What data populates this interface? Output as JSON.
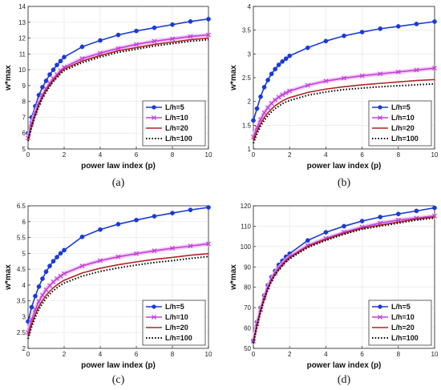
{
  "chart_data": [
    {
      "type": "line",
      "panel_label": "(a)",
      "xlabel": "power law index (p)",
      "ylabel": "w*max",
      "xlim": [
        0,
        10
      ],
      "ylim": [
        5,
        14
      ],
      "xticks": [
        0,
        2,
        4,
        6,
        8,
        10
      ],
      "yticks": [
        5,
        6,
        7,
        8,
        9,
        10,
        11,
        12,
        13,
        14
      ],
      "legend_position": "bottom-right",
      "series": [
        {
          "name": "L/h=5",
          "color": "#1a3bd6",
          "marker": "circle",
          "x": [
            0,
            0.2,
            0.4,
            0.6,
            0.8,
            1.0,
            1.2,
            1.4,
            1.6,
            1.8,
            2.0,
            3,
            4,
            5,
            6,
            7,
            8,
            9,
            10
          ],
          "y": [
            6.0,
            7.0,
            7.7,
            8.4,
            8.9,
            9.3,
            9.7,
            10.0,
            10.3,
            10.55,
            10.8,
            11.45,
            11.85,
            12.2,
            12.45,
            12.65,
            12.85,
            13.05,
            13.2
          ]
        },
        {
          "name": "L/h=10",
          "color": "#c040d8",
          "marker": "x",
          "x": [
            0,
            0.2,
            0.4,
            0.6,
            0.8,
            1.0,
            1.2,
            1.4,
            1.6,
            1.8,
            2.0,
            3,
            4,
            5,
            6,
            7,
            8,
            9,
            10
          ],
          "y": [
            5.7,
            6.6,
            7.3,
            7.9,
            8.4,
            8.8,
            9.15,
            9.45,
            9.7,
            9.95,
            10.15,
            10.7,
            11.05,
            11.35,
            11.6,
            11.8,
            11.95,
            12.1,
            12.2
          ]
        },
        {
          "name": "L/h=20",
          "color": "#b22222",
          "marker": "none",
          "x": [
            0,
            0.2,
            0.4,
            0.6,
            0.8,
            1.0,
            1.2,
            1.4,
            1.6,
            1.8,
            2.0,
            3,
            4,
            5,
            6,
            7,
            8,
            9,
            10
          ],
          "y": [
            5.6,
            6.5,
            7.2,
            7.8,
            8.3,
            8.7,
            9.05,
            9.35,
            9.6,
            9.85,
            10.05,
            10.55,
            10.9,
            11.2,
            11.4,
            11.6,
            11.75,
            11.9,
            12.0
          ]
        },
        {
          "name": "L/h=100",
          "color": "#000000",
          "marker": "dotted",
          "x": [
            0,
            0.2,
            0.4,
            0.6,
            0.8,
            1.0,
            1.2,
            1.4,
            1.6,
            1.8,
            2.0,
            3,
            4,
            5,
            6,
            7,
            8,
            9,
            10
          ],
          "y": [
            5.5,
            6.4,
            7.1,
            7.7,
            8.2,
            8.6,
            8.95,
            9.25,
            9.5,
            9.75,
            9.95,
            10.45,
            10.8,
            11.1,
            11.3,
            11.5,
            11.65,
            11.8,
            11.9
          ]
        }
      ]
    },
    {
      "type": "line",
      "panel_label": "(b)",
      "xlabel": "power law index (p)",
      "ylabel": "w*max",
      "xlim": [
        0,
        10
      ],
      "ylim": [
        1,
        4
      ],
      "xticks": [
        0,
        2,
        4,
        6,
        8,
        10
      ],
      "yticks": [
        1,
        1.5,
        2,
        2.5,
        3,
        3.5,
        4
      ],
      "legend_position": "bottom-right",
      "series": [
        {
          "name": "L/h=5",
          "color": "#1a3bd6",
          "marker": "circle",
          "x": [
            0,
            0.2,
            0.4,
            0.6,
            0.8,
            1.0,
            1.2,
            1.4,
            1.6,
            1.8,
            2.0,
            3,
            4,
            5,
            6,
            7,
            8,
            9,
            10
          ],
          "y": [
            1.6,
            1.85,
            2.1,
            2.3,
            2.45,
            2.58,
            2.68,
            2.77,
            2.84,
            2.9,
            2.96,
            3.13,
            3.27,
            3.38,
            3.46,
            3.53,
            3.58,
            3.63,
            3.68
          ]
        },
        {
          "name": "L/h=10",
          "color": "#c040d8",
          "marker": "x",
          "x": [
            0,
            0.2,
            0.4,
            0.6,
            0.8,
            1.0,
            1.2,
            1.4,
            1.6,
            1.8,
            2.0,
            3,
            4,
            5,
            6,
            7,
            8,
            9,
            10
          ],
          "y": [
            1.25,
            1.45,
            1.62,
            1.76,
            1.87,
            1.96,
            2.03,
            2.09,
            2.14,
            2.18,
            2.22,
            2.34,
            2.43,
            2.49,
            2.54,
            2.58,
            2.62,
            2.66,
            2.7
          ]
        },
        {
          "name": "L/h=20",
          "color": "#b22222",
          "marker": "none",
          "x": [
            0,
            0.2,
            0.4,
            0.6,
            0.8,
            1.0,
            1.2,
            1.4,
            1.6,
            1.8,
            2.0,
            3,
            4,
            5,
            6,
            7,
            8,
            9,
            10
          ],
          "y": [
            1.18,
            1.37,
            1.53,
            1.66,
            1.76,
            1.84,
            1.91,
            1.96,
            2.01,
            2.05,
            2.08,
            2.19,
            2.26,
            2.31,
            2.35,
            2.38,
            2.41,
            2.44,
            2.46
          ]
        },
        {
          "name": "L/h=100",
          "color": "#000000",
          "marker": "dotted",
          "x": [
            0,
            0.2,
            0.4,
            0.6,
            0.8,
            1.0,
            1.2,
            1.4,
            1.6,
            1.8,
            2.0,
            3,
            4,
            5,
            6,
            7,
            8,
            9,
            10
          ],
          "y": [
            1.12,
            1.32,
            1.48,
            1.6,
            1.7,
            1.78,
            1.85,
            1.9,
            1.95,
            1.99,
            2.02,
            2.13,
            2.2,
            2.25,
            2.28,
            2.31,
            2.33,
            2.35,
            2.37
          ]
        }
      ]
    },
    {
      "type": "line",
      "panel_label": "(c)",
      "xlabel": "power law index (p)",
      "ylabel": "w*max",
      "xlim": [
        0,
        10
      ],
      "ylim": [
        2,
        6.5
      ],
      "xticks": [
        0,
        2,
        4,
        6,
        8,
        10
      ],
      "yticks": [
        2,
        2.5,
        3,
        3.5,
        4,
        4.5,
        5,
        5.5,
        6,
        6.5
      ],
      "legend_position": "bottom-right",
      "series": [
        {
          "name": "L/h=5",
          "color": "#1a3bd6",
          "marker": "circle",
          "x": [
            0,
            0.2,
            0.4,
            0.6,
            0.8,
            1.0,
            1.2,
            1.4,
            1.6,
            1.8,
            2.0,
            3,
            4,
            5,
            6,
            7,
            8,
            9,
            10
          ],
          "y": [
            2.85,
            3.3,
            3.65,
            3.95,
            4.2,
            4.42,
            4.6,
            4.75,
            4.88,
            5.0,
            5.1,
            5.52,
            5.75,
            5.92,
            6.05,
            6.17,
            6.27,
            6.37,
            6.45
          ]
        },
        {
          "name": "L/h=10",
          "color": "#c040d8",
          "marker": "x",
          "x": [
            0,
            0.2,
            0.4,
            0.6,
            0.8,
            1.0,
            1.2,
            1.4,
            1.6,
            1.8,
            2.0,
            3,
            4,
            5,
            6,
            7,
            8,
            9,
            10
          ],
          "y": [
            2.5,
            2.9,
            3.22,
            3.48,
            3.68,
            3.85,
            3.98,
            4.1,
            4.2,
            4.28,
            4.36,
            4.6,
            4.77,
            4.89,
            4.99,
            5.08,
            5.16,
            5.23,
            5.3
          ]
        },
        {
          "name": "L/h=20",
          "color": "#b22222",
          "marker": "none",
          "x": [
            0,
            0.2,
            0.4,
            0.6,
            0.8,
            1.0,
            1.2,
            1.4,
            1.6,
            1.8,
            2.0,
            3,
            4,
            5,
            6,
            7,
            8,
            9,
            10
          ],
          "y": [
            2.38,
            2.76,
            3.07,
            3.32,
            3.51,
            3.67,
            3.8,
            3.91,
            4.0,
            4.08,
            4.15,
            4.38,
            4.53,
            4.64,
            4.73,
            4.81,
            4.87,
            4.94,
            4.99
          ]
        },
        {
          "name": "L/h=100",
          "color": "#000000",
          "marker": "dotted",
          "x": [
            0,
            0.2,
            0.4,
            0.6,
            0.8,
            1.0,
            1.2,
            1.4,
            1.6,
            1.8,
            2.0,
            3,
            4,
            5,
            6,
            7,
            8,
            9,
            10
          ],
          "y": [
            2.3,
            2.68,
            2.98,
            3.23,
            3.42,
            3.58,
            3.71,
            3.82,
            3.91,
            3.99,
            4.06,
            4.28,
            4.43,
            4.54,
            4.63,
            4.71,
            4.77,
            4.84,
            4.9
          ]
        }
      ]
    },
    {
      "type": "line",
      "panel_label": "(d)",
      "xlabel": "power law index (p)",
      "ylabel": "w*max",
      "xlim": [
        0,
        10
      ],
      "ylim": [
        50,
        120
      ],
      "xticks": [
        0,
        2,
        4,
        6,
        8,
        10
      ],
      "yticks": [
        50,
        60,
        70,
        80,
        90,
        100,
        110,
        120
      ],
      "legend_position": "bottom-right",
      "series": [
        {
          "name": "L/h=5",
          "color": "#1a3bd6",
          "marker": "circle",
          "x": [
            0,
            0.2,
            0.4,
            0.6,
            0.8,
            1.0,
            1.2,
            1.4,
            1.6,
            1.8,
            2.0,
            3,
            4,
            5,
            6,
            7,
            8,
            9,
            10
          ],
          "y": [
            54,
            63,
            70,
            76,
            81,
            85,
            88,
            91,
            93,
            95,
            96.5,
            103,
            107,
            110,
            112.5,
            114.5,
            116,
            117.5,
            119
          ]
        },
        {
          "name": "L/h=10",
          "color": "#c040d8",
          "marker": "x",
          "x": [
            0,
            0.2,
            0.4,
            0.6,
            0.8,
            1.0,
            1.2,
            1.4,
            1.6,
            1.8,
            2.0,
            3,
            4,
            5,
            6,
            7,
            8,
            9,
            10
          ],
          "y": [
            53.5,
            62,
            69,
            75,
            80,
            84,
            87,
            89.5,
            91.5,
            93.5,
            95,
            100.5,
            104,
            107,
            109.5,
            111.5,
            113,
            114,
            115
          ]
        },
        {
          "name": "L/h=20",
          "color": "#b22222",
          "marker": "none",
          "x": [
            0,
            0.2,
            0.4,
            0.6,
            0.8,
            1.0,
            1.2,
            1.4,
            1.6,
            1.8,
            2.0,
            3,
            4,
            5,
            6,
            7,
            8,
            9,
            10
          ],
          "y": [
            53,
            61.5,
            68.5,
            74.5,
            79.5,
            83.5,
            86.5,
            89,
            91,
            93,
            94.5,
            100,
            103.5,
            106.5,
            109,
            110.5,
            112,
            113.5,
            114.5
          ]
        },
        {
          "name": "L/h=100",
          "color": "#000000",
          "marker": "dotted",
          "x": [
            0,
            0.2,
            0.4,
            0.6,
            0.8,
            1.0,
            1.2,
            1.4,
            1.6,
            1.8,
            2.0,
            3,
            4,
            5,
            6,
            7,
            8,
            9,
            10
          ],
          "y": [
            52.5,
            61,
            68,
            74,
            79,
            83,
            86,
            88.5,
            90.5,
            92.5,
            94,
            99.5,
            103,
            106,
            108.5,
            110,
            111.5,
            113,
            114
          ]
        }
      ]
    }
  ]
}
